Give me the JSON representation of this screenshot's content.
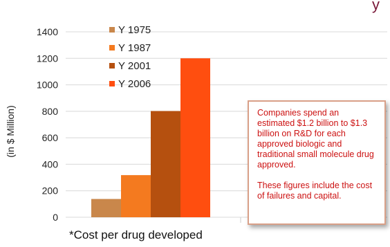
{
  "chart_data": {
    "type": "bar",
    "title": "",
    "ylabel": "(in $ Million)",
    "xlabel": "",
    "ylim": [
      0,
      1400
    ],
    "yticks": [
      0,
      200,
      400,
      600,
      800,
      1000,
      1200,
      1400
    ],
    "grid": true,
    "legend_position": "top-left",
    "series": [
      {
        "name": "Y 1975",
        "value": 138,
        "color": "#c9874b"
      },
      {
        "name": "Y 1987",
        "value": 318,
        "color": "#f47a1f"
      },
      {
        "name": "Y 2001",
        "value": 802,
        "color": "#b5500f"
      },
      {
        "name": "Y 2006",
        "value": 1200,
        "color": "#ff4e0f"
      }
    ],
    "footnote": "*Cost per drug developed",
    "callout": {
      "paragraph1": "Companies spend an estimated $1.2 billion to $1.3 billion on R&D for each approved biologic and traditional small molecule drug approved.",
      "paragraph2": "These figures include the cost of failures and capital."
    },
    "top_fragment": "y",
    "top_fragment_color": "#7a1a3a"
  }
}
